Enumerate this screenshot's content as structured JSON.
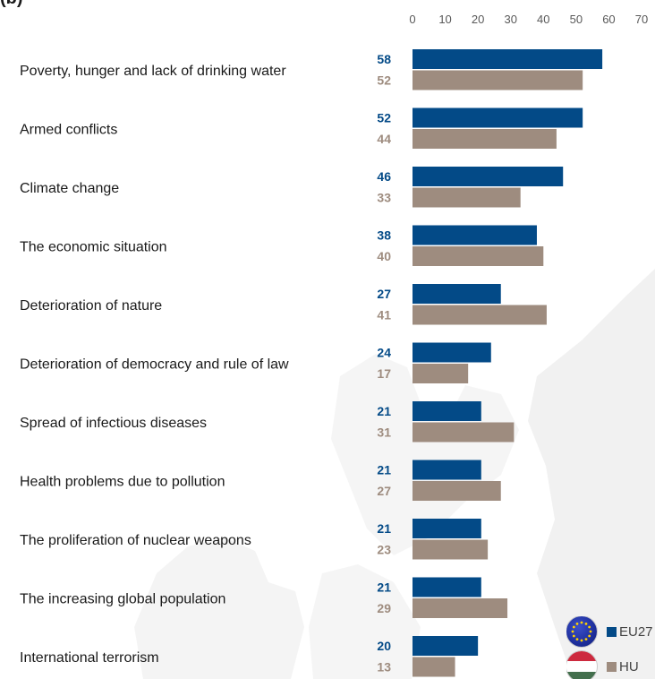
{
  "figure_label": "(b)",
  "colors": {
    "eu": "#034a87",
    "hu": "#9e8c7f",
    "axis_text": "#595959",
    "category_text": "#1a1a1a",
    "map_bg": "#f2f2f2"
  },
  "legend": {
    "eu": {
      "label": "EU27",
      "icon": "eu-flag-icon"
    },
    "hu": {
      "label": "HU",
      "icon": "hungary-flag-icon"
    }
  },
  "chart_data": {
    "type": "bar",
    "orientation": "horizontal",
    "categories": [
      "Poverty, hunger and lack of drinking water",
      "Armed conflicts",
      "Climate change",
      "The economic situation",
      "Deterioration of nature",
      "Deterioration of democracy and rule of law",
      "Spread of infectious diseases",
      "Health problems due to pollution",
      "The proliferation of nuclear weapons",
      "The increasing global population",
      "International terrorism"
    ],
    "series": [
      {
        "name": "EU27",
        "values": [
          58,
          52,
          46,
          38,
          27,
          24,
          21,
          21,
          21,
          21,
          20
        ]
      },
      {
        "name": "HU",
        "values": [
          52,
          44,
          33,
          40,
          41,
          17,
          31,
          27,
          23,
          29,
          13
        ]
      }
    ],
    "xlim": [
      0,
      70
    ],
    "xticks": [
      0,
      10,
      20,
      30,
      40,
      50,
      60,
      70
    ],
    "x_axis_position": "top",
    "grid": false,
    "data_labels": true,
    "legend_position": "bottom-right"
  }
}
